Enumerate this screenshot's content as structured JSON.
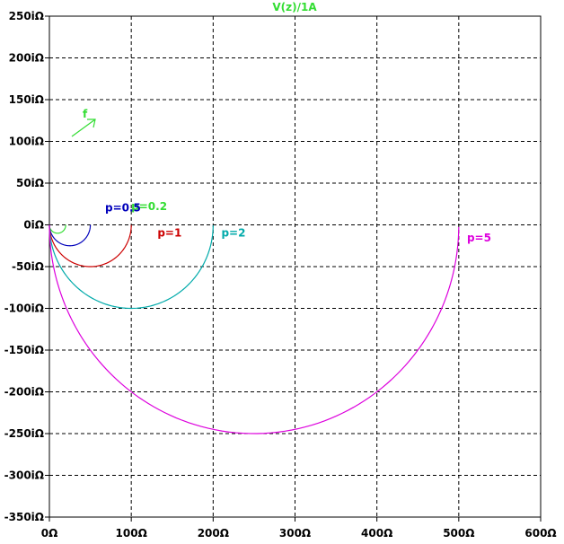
{
  "chart_data": {
    "type": "line",
    "title": "V(z)/1A",
    "xlabel": "",
    "ylabel": "",
    "xlim": [
      0,
      600
    ],
    "ylim": [
      -350,
      250
    ],
    "xticks": [
      "0Ω",
      "100Ω",
      "200Ω",
      "300Ω",
      "400Ω",
      "500Ω",
      "600Ω"
    ],
    "yticks": [
      "250iΩ",
      "200iΩ",
      "150iΩ",
      "100iΩ",
      "50iΩ",
      "0iΩ",
      "-50iΩ",
      "-100iΩ",
      "-150iΩ",
      "-200iΩ",
      "-250iΩ",
      "-300iΩ",
      "-350iΩ"
    ],
    "grid": true,
    "arrow_label": "f",
    "series": [
      {
        "name": "p=0.2",
        "color": "#33dd33",
        "R": 100,
        "p": 0.2
      },
      {
        "name": "p=0.5",
        "color": "#0000bb",
        "R": 100,
        "p": 0.5
      },
      {
        "name": "p=1",
        "color": "#cc0000",
        "R": 100,
        "p": 1
      },
      {
        "name": "p=2",
        "color": "#00aaaa",
        "R": 100,
        "p": 2
      },
      {
        "name": "p=5",
        "color": "#dd00dd",
        "R": 100,
        "p": 5
      }
    ]
  }
}
